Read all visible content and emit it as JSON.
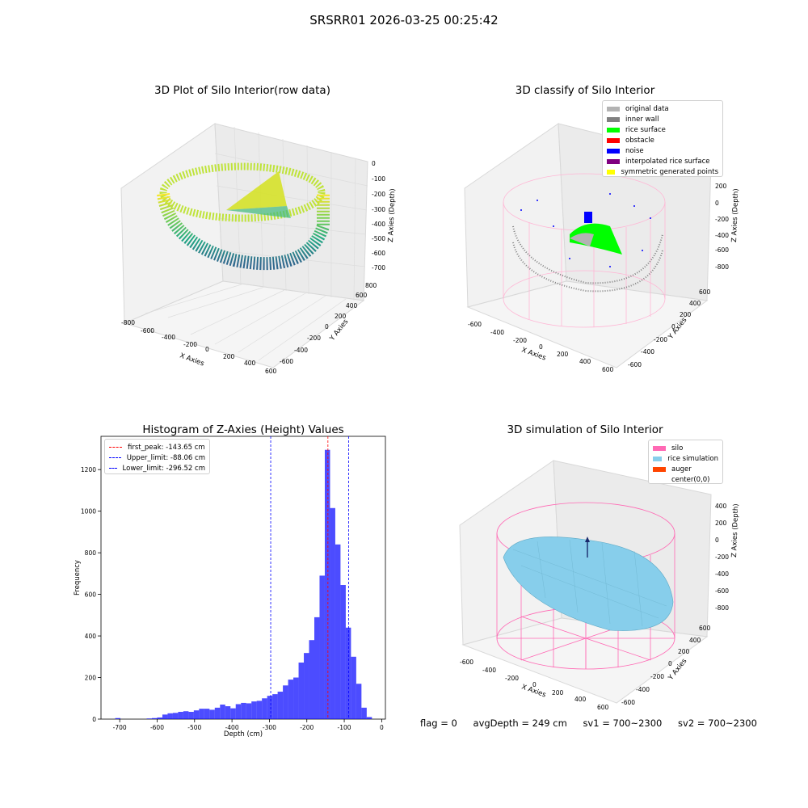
{
  "suptitle": "SRSRR01 2026-03-25 00:25:42",
  "panels": {
    "raw": {
      "title": "3D Plot of Silo Interior(row data)",
      "xlabel": "X Axies",
      "ylabel": "Y Axies",
      "zlabel": "Z Axies (Depth)",
      "xticks": [
        "-800",
        "-600",
        "-400",
        "-200",
        "0",
        "200",
        "400",
        "600"
      ],
      "yticks": [
        "-600",
        "-400",
        "-200",
        "0",
        "200",
        "400",
        "600",
        "800"
      ],
      "zticks": [
        "0",
        "-100",
        "-200",
        "-300",
        "-400",
        "-500",
        "-600",
        "-700"
      ]
    },
    "classify": {
      "title": "3D classify of Silo Interior",
      "xlabel": "X Axies",
      "ylabel": "Y Axies",
      "zlabel": "Z Axies (Depth)",
      "xticks": [
        "-600",
        "-400",
        "-200",
        "0",
        "200",
        "400",
        "600"
      ],
      "yticks": [
        "-600",
        "-400",
        "-200",
        "0",
        "200",
        "400",
        "600"
      ],
      "zticks": [
        "200",
        "0",
        "-200",
        "-400",
        "-600",
        "-800"
      ],
      "legend": [
        {
          "label": "original data",
          "color": "#b3b3b3"
        },
        {
          "label": "inner wall",
          "color": "#808080"
        },
        {
          "label": "rice surface",
          "color": "#00ff00"
        },
        {
          "label": "obstacle",
          "color": "#ff0000"
        },
        {
          "label": "noise",
          "color": "#0000ff"
        },
        {
          "label": "interpolated rice surface",
          "color": "#800080"
        },
        {
          "label": "symmetric generated points",
          "color": "#ffff00"
        }
      ]
    },
    "simulation": {
      "title": "3D simulation of Silo Interior",
      "xlabel": "X Axies",
      "ylabel": "Y Axies",
      "zlabel": "Z Axies (Depth)",
      "xticks": [
        "-600",
        "-400",
        "-200",
        "0",
        "200",
        "400",
        "600"
      ],
      "yticks": [
        "-600",
        "-400",
        "-200",
        "0",
        "200",
        "400",
        "600"
      ],
      "zticks": [
        "400",
        "200",
        "0",
        "-200",
        "-400",
        "-600",
        "-800"
      ],
      "legend": [
        {
          "label": "silo",
          "color": "#ff69b4"
        },
        {
          "label": "rice simulation",
          "color": "#87ceeb"
        },
        {
          "label": "auger",
          "color": "#ff4500"
        },
        {
          "label": "center(0,0)",
          "color": "#ffffff"
        }
      ]
    }
  },
  "chart_data": {
    "type": "bar",
    "title": "Histogram of Z-Axies (Height) Values",
    "xlabel": "Depth (cm)",
    "ylabel": "Frequency",
    "xlim": [
      -750,
      10
    ],
    "ylim": [
      0,
      1360
    ],
    "xticks": [
      -700,
      -600,
      -500,
      -400,
      -300,
      -200,
      -100,
      0
    ],
    "yticks": [
      0,
      200,
      400,
      600,
      800,
      1000,
      1200
    ],
    "bar_color": "#0000ff",
    "bins": [
      {
        "x0": -712,
        "x1": -698,
        "count": 5
      },
      {
        "x0": -628,
        "x1": -614,
        "count": 3
      },
      {
        "x0": -614,
        "x1": -600,
        "count": 5
      },
      {
        "x0": -600,
        "x1": -586,
        "count": 8
      },
      {
        "x0": -586,
        "x1": -572,
        "count": 22
      },
      {
        "x0": -572,
        "x1": -558,
        "count": 28
      },
      {
        "x0": -558,
        "x1": -544,
        "count": 30
      },
      {
        "x0": -544,
        "x1": -530,
        "count": 35
      },
      {
        "x0": -530,
        "x1": -516,
        "count": 38
      },
      {
        "x0": -516,
        "x1": -502,
        "count": 35
      },
      {
        "x0": -502,
        "x1": -488,
        "count": 42
      },
      {
        "x0": -488,
        "x1": -474,
        "count": 50
      },
      {
        "x0": -474,
        "x1": -460,
        "count": 50
      },
      {
        "x0": -460,
        "x1": -446,
        "count": 45
      },
      {
        "x0": -446,
        "x1": -432,
        "count": 55
      },
      {
        "x0": -432,
        "x1": -418,
        "count": 70
      },
      {
        "x0": -418,
        "x1": -404,
        "count": 62
      },
      {
        "x0": -404,
        "x1": -390,
        "count": 52
      },
      {
        "x0": -390,
        "x1": -376,
        "count": 72
      },
      {
        "x0": -376,
        "x1": -362,
        "count": 78
      },
      {
        "x0": -362,
        "x1": -348,
        "count": 76
      },
      {
        "x0": -348,
        "x1": -334,
        "count": 85
      },
      {
        "x0": -334,
        "x1": -320,
        "count": 88
      },
      {
        "x0": -320,
        "x1": -306,
        "count": 100
      },
      {
        "x0": -306,
        "x1": -292,
        "count": 112
      },
      {
        "x0": -292,
        "x1": -278,
        "count": 120
      },
      {
        "x0": -278,
        "x1": -264,
        "count": 132
      },
      {
        "x0": -264,
        "x1": -250,
        "count": 162
      },
      {
        "x0": -250,
        "x1": -236,
        "count": 190
      },
      {
        "x0": -236,
        "x1": -222,
        "count": 200
      },
      {
        "x0": -222,
        "x1": -208,
        "count": 272
      },
      {
        "x0": -208,
        "x1": -194,
        "count": 318
      },
      {
        "x0": -194,
        "x1": -180,
        "count": 380
      },
      {
        "x0": -180,
        "x1": -166,
        "count": 490
      },
      {
        "x0": -166,
        "x1": -152,
        "count": 690
      },
      {
        "x0": -152,
        "x1": -138,
        "count": 1295
      },
      {
        "x0": -138,
        "x1": -124,
        "count": 1015
      },
      {
        "x0": -124,
        "x1": -110,
        "count": 840
      },
      {
        "x0": -110,
        "x1": -96,
        "count": 645
      },
      {
        "x0": -96,
        "x1": -82,
        "count": 440
      },
      {
        "x0": -82,
        "x1": -68,
        "count": 300
      },
      {
        "x0": -68,
        "x1": -54,
        "count": 170
      },
      {
        "x0": -54,
        "x1": -40,
        "count": 55
      },
      {
        "x0": -40,
        "x1": -26,
        "count": 10
      }
    ],
    "vlines": [
      {
        "label": "first_peak: -143.65 cm",
        "x": -143.65,
        "color": "#ff0000"
      },
      {
        "label": "Upper_limit: -88.06 cm",
        "x": -88.06,
        "color": "#0000ff"
      },
      {
        "label": "Lower_limit: -296.52 cm",
        "x": -296.52,
        "color": "#0000ff"
      }
    ],
    "legend_position": "upper-left"
  },
  "footer": {
    "flag": "flag = 0",
    "avg": "avgDepth = 249 cm",
    "sv1": "sv1 = 700~2300",
    "sv2": "sv2 = 700~2300"
  }
}
